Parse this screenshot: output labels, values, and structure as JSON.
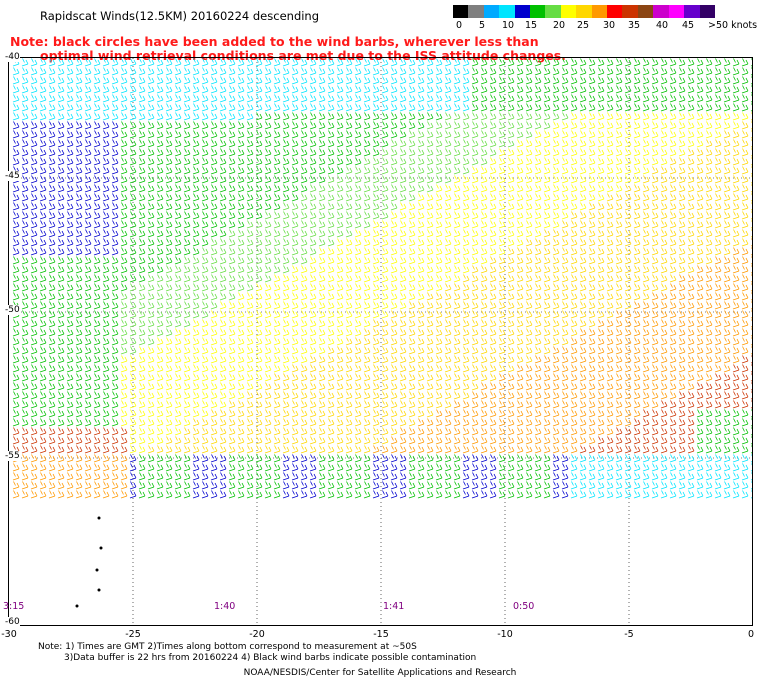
{
  "title": "Rapidscat Winds(12.5KM) 20160224 descending",
  "red_note": {
    "line1": "Note: black circles have been added to the wind barbs, wherever less than",
    "line2": "optimal wind retrieval conditions are met due to the ISS attitude changes."
  },
  "legend": {
    "labels": [
      "0",
      "5",
      "10",
      "15",
      "20",
      "25",
      "30",
      "35",
      "40",
      "45",
      ">50 knots"
    ],
    "colors": [
      "#000000",
      "#7f7f7f",
      "#00aaff",
      "#00e5ff",
      "#0000cd",
      "#00c000",
      "#66dd44",
      "#ffff00",
      "#ffd700",
      "#ff9900",
      "#ff0000",
      "#cc3300",
      "#8b4513",
      "#cc00cc",
      "#ff00ff",
      "#6600cc",
      "#330066"
    ]
  },
  "axes": {
    "lat_ticks": [
      "-40",
      "-45",
      "-50",
      "-55",
      "-60"
    ],
    "lon_ticks": [
      "-30",
      "-25",
      "-20",
      "-15",
      "-10",
      "-5",
      "0"
    ]
  },
  "pass_times": [
    "3:15",
    "1:40",
    "1:41",
    "0:50"
  ],
  "bottom_note": {
    "line1": "Note: 1) Times are GMT 2)Times along bottom correspond to measurement at ~50S",
    "line2": "3)Data buffer is 22 hrs from 20160224 4) Black wind barbs indicate possible contamination"
  },
  "credit": "NOAA/NESDIS/Center for Satellite Applications and Research"
}
